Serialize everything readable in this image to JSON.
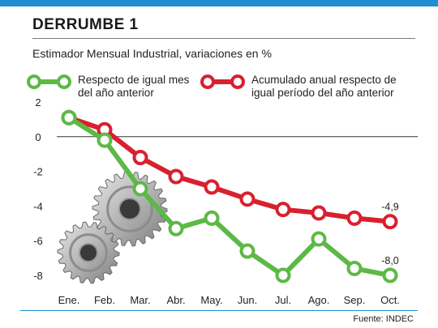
{
  "header": {
    "title": "DERRUMBE 1",
    "accent_color": "#1f8fcf"
  },
  "subtitle": "Estimador Mensual Industrial, variaciones en %",
  "legend": {
    "green": "Respecto de igual mes\ndel año anterior",
    "red": "Acumulado anual respecto de\nigual período del año anterior"
  },
  "source": "Fuente: INDEC",
  "illustration": "gears-icon",
  "chart_data": {
    "type": "line",
    "title": "Estimador Mensual Industrial, variaciones en %",
    "xlabel": "",
    "ylabel": "",
    "categories": [
      "Ene.",
      "Feb.",
      "Mar.",
      "Abr.",
      "May.",
      "Jun.",
      "Jul.",
      "Ago.",
      "Sep.",
      "Oct."
    ],
    "ylim": [
      -8,
      2
    ],
    "yticks": [
      2,
      0,
      -2,
      -4,
      -6,
      -8
    ],
    "series": [
      {
        "name": "Respecto de igual mes del año anterior",
        "color": "#5cb946",
        "values": [
          1.1,
          -0.2,
          -3.0,
          -5.3,
          -4.7,
          -6.6,
          -8.0,
          -5.9,
          -7.6,
          -8.0
        ]
      },
      {
        "name": "Acumulado anual respecto de igual período del año anterior",
        "color": "#d8202f",
        "values": [
          1.1,
          0.4,
          -1.2,
          -2.3,
          -2.9,
          -3.6,
          -4.2,
          -4.4,
          -4.7,
          -4.9
        ]
      }
    ],
    "data_labels": [
      {
        "series": 1,
        "index": 9,
        "text": "-4,9"
      },
      {
        "series": 0,
        "index": 9,
        "text": "-8,0"
      }
    ],
    "grid": false,
    "zero_line": true
  }
}
